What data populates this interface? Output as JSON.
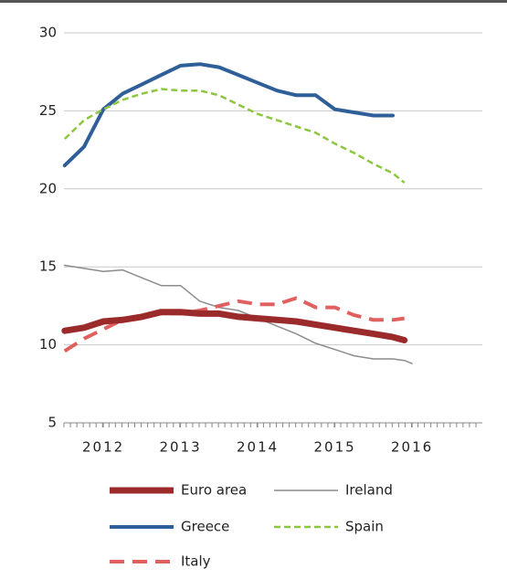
{
  "chart_data": {
    "type": "line",
    "x": [
      2011.5,
      2011.75,
      2012.0,
      2012.25,
      2012.5,
      2012.75,
      2013.0,
      2013.25,
      2013.5,
      2013.75,
      2014.0,
      2014.25,
      2014.5,
      2014.75,
      2015.0,
      2015.25,
      2015.5,
      2015.75,
      2015.9,
      2016.0
    ],
    "series": [
      {
        "name": "Euro area",
        "color": "#9b2b2b",
        "width": 7,
        "dash": "solid",
        "values": [
          10.9,
          11.1,
          11.5,
          11.6,
          11.8,
          12.1,
          12.1,
          12.0,
          12.0,
          11.8,
          11.7,
          11.6,
          11.5,
          11.3,
          11.1,
          10.9,
          10.7,
          10.5,
          10.3,
          null
        ]
      },
      {
        "name": "Ireland",
        "color": "#8c8c8c",
        "width": 1.5,
        "dash": "solid",
        "values": [
          15.1,
          14.9,
          14.7,
          14.8,
          14.3,
          13.8,
          13.8,
          12.8,
          12.4,
          12.2,
          11.7,
          11.2,
          10.7,
          10.1,
          9.7,
          9.3,
          9.1,
          9.1,
          9.0,
          8.8
        ]
      },
      {
        "name": "Greece",
        "color": "#2f5f98",
        "width": 4,
        "dash": "solid",
        "values": [
          21.5,
          22.7,
          25.1,
          26.1,
          26.7,
          27.3,
          27.9,
          28.0,
          27.8,
          27.3,
          26.8,
          26.3,
          26.0,
          26.0,
          25.1,
          24.9,
          24.7,
          24.7,
          null,
          null
        ]
      },
      {
        "name": "Spain",
        "color": "#8dc63f",
        "width": 2.5,
        "dash": "dashed",
        "values": [
          23.2,
          24.4,
          25.1,
          25.7,
          26.1,
          26.4,
          26.3,
          26.3,
          26.0,
          25.4,
          24.8,
          24.4,
          24.0,
          23.6,
          22.9,
          22.3,
          21.6,
          21.0,
          20.4,
          null
        ]
      },
      {
        "name": "Italy",
        "color": "#e06060",
        "width": 4,
        "dash": "longdash",
        "values": [
          9.6,
          10.4,
          11.0,
          11.6,
          11.9,
          12.0,
          12.0,
          12.2,
          12.5,
          12.8,
          12.6,
          12.6,
          13.0,
          12.4,
          12.4,
          11.9,
          11.6,
          11.6,
          11.7,
          null
        ]
      }
    ],
    "xlim": [
      2011.49,
      2016.91
    ],
    "xticks": [
      2012,
      2013,
      2014,
      2015,
      2016
    ],
    "ylim": [
      5,
      30
    ],
    "yticks": [
      5,
      10,
      15,
      20,
      25,
      30
    ],
    "grid": true
  }
}
